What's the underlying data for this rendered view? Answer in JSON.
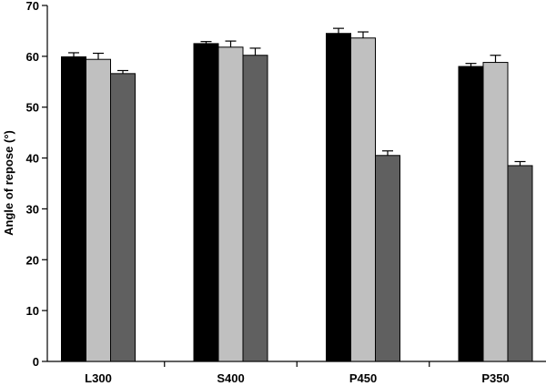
{
  "chart_data": {
    "type": "bar",
    "title": "",
    "xlabel": "",
    "ylabel": "Angle of repose (°)",
    "ylim": [
      0,
      70
    ],
    "yticks": [
      0,
      10,
      20,
      30,
      40,
      50,
      60,
      70
    ],
    "grid": false,
    "legend": "none",
    "categories": [
      "L300",
      "S400",
      "P450",
      "P350"
    ],
    "series": [
      {
        "color": "#000000",
        "values": [
          59.9,
          62.5,
          64.5,
          58.0
        ],
        "errors": [
          0.8,
          0.4,
          1.0,
          0.6
        ]
      },
      {
        "color": "#c0c0c0",
        "values": [
          59.4,
          61.8,
          63.6,
          58.8
        ],
        "errors": [
          1.2,
          1.2,
          1.2,
          1.4
        ]
      },
      {
        "color": "#606060",
        "values": [
          56.6,
          60.2,
          40.5,
          38.5
        ],
        "errors": [
          0.6,
          1.4,
          0.9,
          0.8
        ]
      }
    ]
  }
}
